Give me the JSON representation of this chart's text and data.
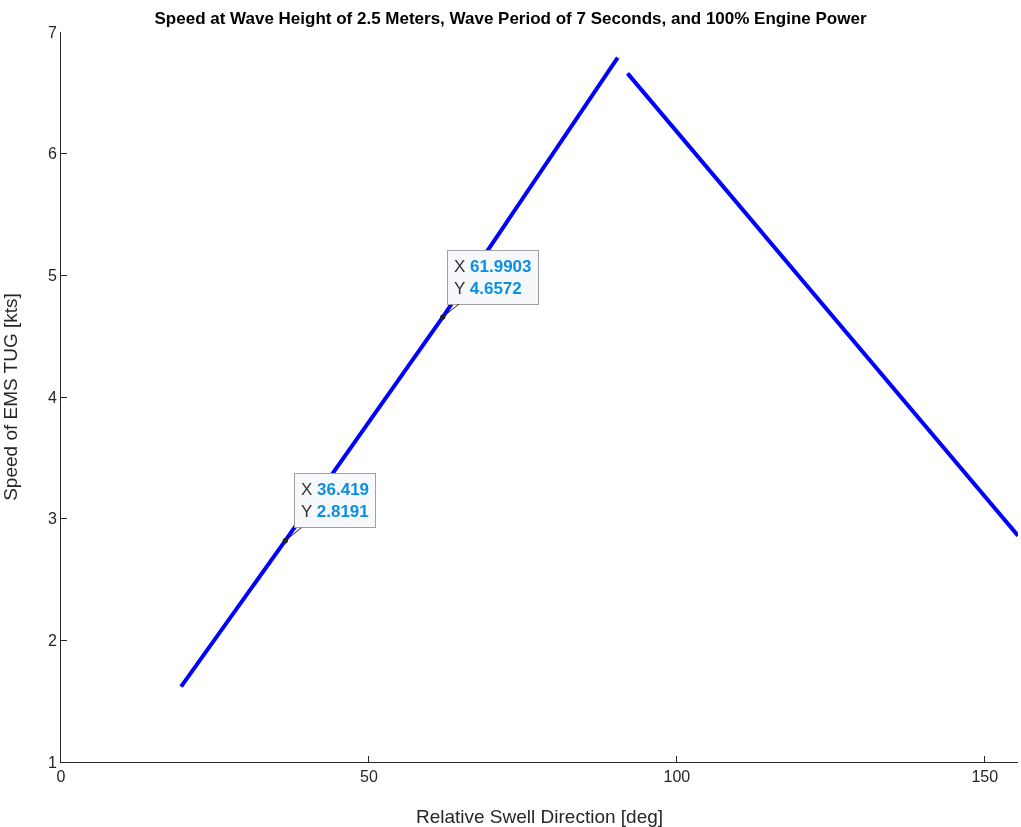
{
  "chart_data": {
    "type": "line",
    "title": "Speed at Wave Height of 2.5 Meters, Wave Period of 7 Seconds, and 100% Engine Power",
    "xlabel": "Relative Swell Direction [deg]",
    "ylabel": "Speed of EMS TUG [kts]",
    "x": [
      19.5,
      36.419,
      61.9903,
      90.4,
      91.2,
      92.0,
      155.4
    ],
    "series": [
      {
        "color": "#0000ff",
        "values": [
          1.62,
          2.8191,
          4.6572,
          6.79,
          null,
          6.66,
          2.86
        ]
      }
    ],
    "xlim": [
      0,
      155.4
    ],
    "xticks": [
      0,
      50,
      100,
      150
    ],
    "ylim": [
      1,
      7
    ],
    "yticks": [
      1,
      2,
      3,
      4,
      5,
      6,
      7
    ],
    "grid": false,
    "marker": "none",
    "line_style": "solid",
    "annotations": [
      {
        "text": "X 36.419\nY 2.8191",
        "x": 36.419,
        "y": 2.8191
      },
      {
        "text": "X 61.9903\nY 4.6572",
        "x": 61.9903,
        "y": 4.6572
      }
    ]
  }
}
